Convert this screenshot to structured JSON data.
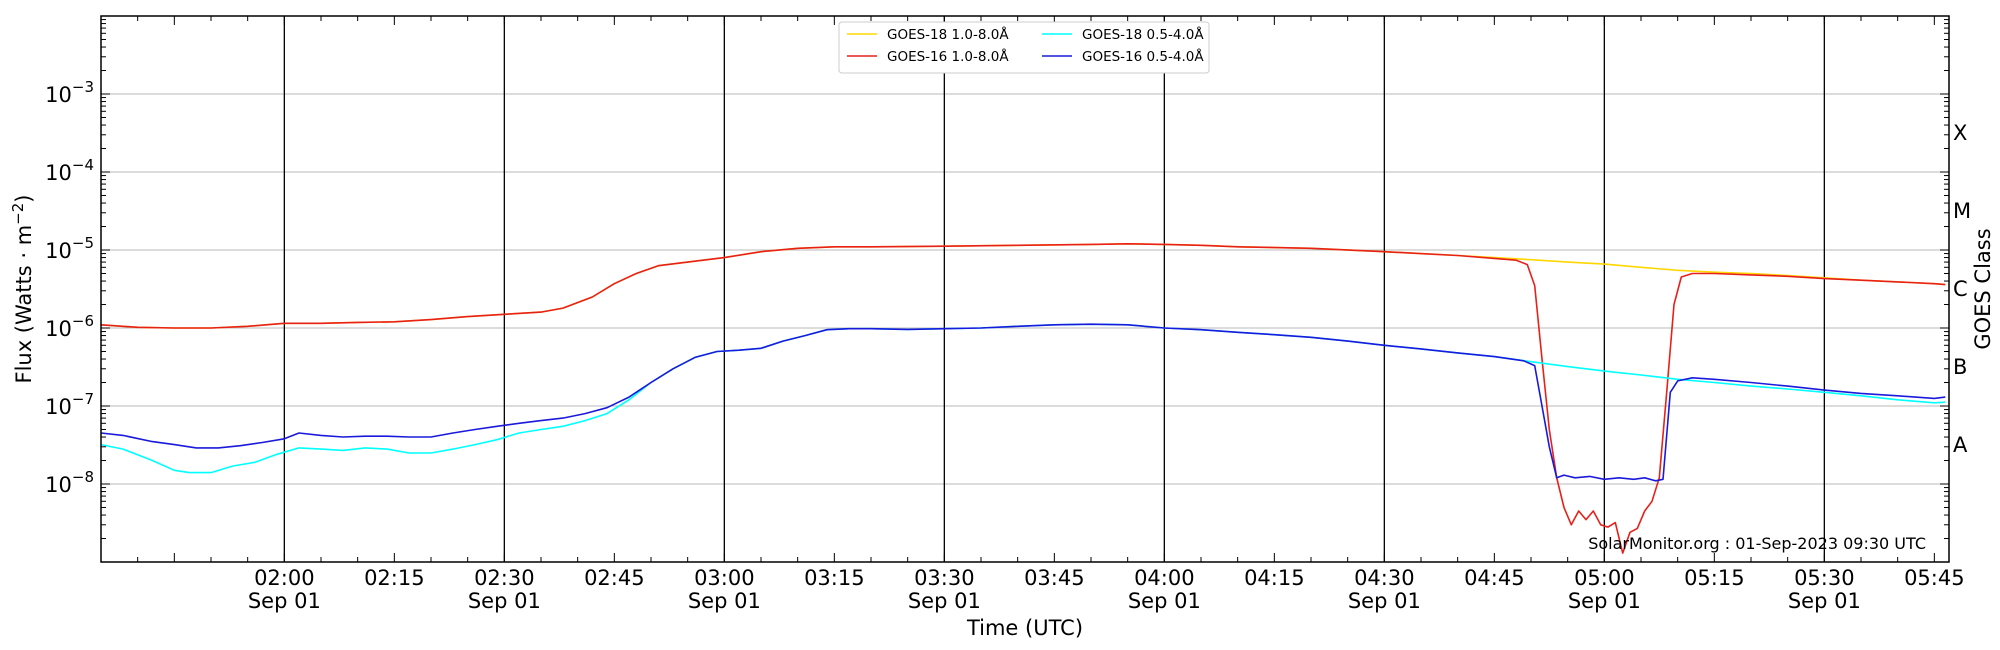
{
  "chart_data": {
    "type": "line",
    "ylabel_main": "Flux (Watts · m",
    "ylabel_exp": "−2",
    "ylabel_close": ")",
    "xlabel": "Time (UTC)",
    "right_label": "GOES Class",
    "annotation": "SolarMonitor.org : 01-Sep-2023 09:30 UTC",
    "y_scale": "log",
    "ylim": [
      1e-09,
      0.01
    ],
    "xlim_minutes": [
      95,
      347
    ],
    "grid": "horizontal at decades; vertical black lines every 30 minutes",
    "legend_position": "top-center",
    "x_ticks": [
      {
        "minute": 120,
        "time": "02:00",
        "date": "Sep 01"
      },
      {
        "minute": 135,
        "time": "02:15",
        "date": ""
      },
      {
        "minute": 150,
        "time": "02:30",
        "date": "Sep 01"
      },
      {
        "minute": 165,
        "time": "02:45",
        "date": ""
      },
      {
        "minute": 180,
        "time": "03:00",
        "date": "Sep 01"
      },
      {
        "minute": 195,
        "time": "03:15",
        "date": ""
      },
      {
        "minute": 210,
        "time": "03:30",
        "date": "Sep 01"
      },
      {
        "minute": 225,
        "time": "03:45",
        "date": ""
      },
      {
        "minute": 240,
        "time": "04:00",
        "date": "Sep 01"
      },
      {
        "minute": 255,
        "time": "04:15",
        "date": ""
      },
      {
        "minute": 270,
        "time": "04:30",
        "date": "Sep 01"
      },
      {
        "minute": 285,
        "time": "04:45",
        "date": ""
      },
      {
        "minute": 300,
        "time": "05:00",
        "date": "Sep 01"
      },
      {
        "minute": 315,
        "time": "05:15",
        "date": ""
      },
      {
        "minute": 330,
        "time": "05:30",
        "date": "Sep 01"
      },
      {
        "minute": 345,
        "time": "05:45",
        "date": ""
      }
    ],
    "y_ticks": [
      {
        "value": 1e-08,
        "base": "10",
        "exp": "−8"
      },
      {
        "value": 1e-07,
        "base": "10",
        "exp": "−7"
      },
      {
        "value": 1e-06,
        "base": "10",
        "exp": "−6"
      },
      {
        "value": 1e-05,
        "base": "10",
        "exp": "−5"
      },
      {
        "value": 0.0001,
        "base": "10",
        "exp": "−4"
      },
      {
        "value": 0.001,
        "base": "10",
        "exp": "−3"
      }
    ],
    "goes_classes": [
      {
        "label": "A",
        "value": 3.16e-08
      },
      {
        "label": "B",
        "value": 3.16e-07
      },
      {
        "label": "C",
        "value": 3.16e-06
      },
      {
        "label": "M",
        "value": 3.16e-05
      },
      {
        "label": "X",
        "value": 0.000316
      }
    ],
    "series": [
      {
        "name": "GOES-18 1.0-8.0Å",
        "color": "#ffd700",
        "points": [
          [
            95,
            1.1e-06
          ],
          [
            100,
            1.02e-06
          ],
          [
            105,
            1e-06
          ],
          [
            110,
            1e-06
          ],
          [
            115,
            1.05e-06
          ],
          [
            120,
            1.15e-06
          ],
          [
            125,
            1.15e-06
          ],
          [
            130,
            1.18e-06
          ],
          [
            135,
            1.2e-06
          ],
          [
            140,
            1.28e-06
          ],
          [
            145,
            1.4e-06
          ],
          [
            150,
            1.5e-06
          ],
          [
            155,
            1.6e-06
          ],
          [
            158,
            1.8e-06
          ],
          [
            162,
            2.5e-06
          ],
          [
            165,
            3.7e-06
          ],
          [
            168,
            5e-06
          ],
          [
            171,
            6.3e-06
          ],
          [
            175,
            7e-06
          ],
          [
            180,
            8e-06
          ],
          [
            185,
            9.5e-06
          ],
          [
            190,
            1.05e-05
          ],
          [
            195,
            1.1e-05
          ],
          [
            200,
            1.1e-05
          ],
          [
            210,
            1.12e-05
          ],
          [
            220,
            1.15e-05
          ],
          [
            230,
            1.18e-05
          ],
          [
            235,
            1.2e-05
          ],
          [
            240,
            1.18e-05
          ],
          [
            245,
            1.15e-05
          ],
          [
            250,
            1.1e-05
          ],
          [
            260,
            1.05e-05
          ],
          [
            270,
            9.5e-06
          ],
          [
            280,
            8.5e-06
          ],
          [
            285,
            8e-06
          ],
          [
            290,
            7.5e-06
          ],
          [
            295,
            7e-06
          ],
          [
            300,
            6.6e-06
          ],
          [
            305,
            6e-06
          ],
          [
            310,
            5.5e-06
          ],
          [
            315,
            5.2e-06
          ],
          [
            320,
            5e-06
          ],
          [
            325,
            4.7e-06
          ],
          [
            330,
            4.4e-06
          ],
          [
            335,
            4.1e-06
          ],
          [
            340,
            3.9e-06
          ],
          [
            345,
            3.7e-06
          ],
          [
            346.5,
            3.6e-06
          ]
        ]
      },
      {
        "name": "GOES-16 1.0-8.0Å",
        "color": "#e8201a",
        "points": [
          [
            95,
            1.1e-06
          ],
          [
            100,
            1.02e-06
          ],
          [
            105,
            1e-06
          ],
          [
            110,
            1e-06
          ],
          [
            115,
            1.05e-06
          ],
          [
            120,
            1.15e-06
          ],
          [
            125,
            1.15e-06
          ],
          [
            130,
            1.18e-06
          ],
          [
            135,
            1.2e-06
          ],
          [
            140,
            1.28e-06
          ],
          [
            145,
            1.4e-06
          ],
          [
            150,
            1.5e-06
          ],
          [
            155,
            1.6e-06
          ],
          [
            158,
            1.8e-06
          ],
          [
            162,
            2.5e-06
          ],
          [
            165,
            3.7e-06
          ],
          [
            168,
            5e-06
          ],
          [
            171,
            6.3e-06
          ],
          [
            175,
            7e-06
          ],
          [
            180,
            8e-06
          ],
          [
            185,
            9.5e-06
          ],
          [
            190,
            1.05e-05
          ],
          [
            195,
            1.1e-05
          ],
          [
            200,
            1.1e-05
          ],
          [
            210,
            1.12e-05
          ],
          [
            220,
            1.15e-05
          ],
          [
            230,
            1.18e-05
          ],
          [
            235,
            1.2e-05
          ],
          [
            240,
            1.18e-05
          ],
          [
            245,
            1.15e-05
          ],
          [
            250,
            1.1e-05
          ],
          [
            260,
            1.05e-05
          ],
          [
            270,
            9.5e-06
          ],
          [
            280,
            8.5e-06
          ],
          [
            285,
            7.8e-06
          ],
          [
            288,
            7.4e-06
          ],
          [
            289.5,
            6.5e-06
          ],
          [
            290.5,
            3.5e-06
          ],
          [
            291.5,
            4e-07
          ],
          [
            292.5,
            5e-08
          ],
          [
            293.5,
            1.2e-08
          ],
          [
            294.5,
            5e-09
          ],
          [
            295.5,
            3e-09
          ],
          [
            296.5,
            4.5e-09
          ],
          [
            297.5,
            3.5e-09
          ],
          [
            298.5,
            4.5e-09
          ],
          [
            299.5,
            3e-09
          ],
          [
            300.5,
            2.8e-09
          ],
          [
            301.5,
            3.2e-09
          ],
          [
            302.5,
            1.3e-09
          ],
          [
            303.5,
            2.4e-09
          ],
          [
            304.5,
            2.7e-09
          ],
          [
            305.5,
            4.5e-09
          ],
          [
            306.5,
            6e-09
          ],
          [
            307.5,
            1.2e-08
          ],
          [
            308.5,
            1.5e-07
          ],
          [
            309.5,
            2e-06
          ],
          [
            310.5,
            4.5e-06
          ],
          [
            312,
            5e-06
          ],
          [
            315,
            5e-06
          ],
          [
            320,
            4.8e-06
          ],
          [
            325,
            4.6e-06
          ],
          [
            330,
            4.3e-06
          ],
          [
            335,
            4.1e-06
          ],
          [
            340,
            3.9e-06
          ],
          [
            345,
            3.7e-06
          ],
          [
            346.5,
            3.6e-06
          ]
        ]
      },
      {
        "name": "GOES-18 0.5-4.0Å",
        "color": "#00ffff",
        "points": [
          [
            95,
            3.2e-08
          ],
          [
            98,
            2.8e-08
          ],
          [
            102,
            2e-08
          ],
          [
            105,
            1.5e-08
          ],
          [
            107,
            1.4e-08
          ],
          [
            110,
            1.4e-08
          ],
          [
            113,
            1.7e-08
          ],
          [
            116,
            1.9e-08
          ],
          [
            119,
            2.4e-08
          ],
          [
            122,
            2.9e-08
          ],
          [
            125,
            2.8e-08
          ],
          [
            128,
            2.7e-08
          ],
          [
            131,
            2.9e-08
          ],
          [
            134,
            2.8e-08
          ],
          [
            137,
            2.5e-08
          ],
          [
            140,
            2.5e-08
          ],
          [
            143,
            2.8e-08
          ],
          [
            146,
            3.2e-08
          ],
          [
            149,
            3.7e-08
          ],
          [
            152,
            4.5e-08
          ],
          [
            155,
            5e-08
          ],
          [
            158,
            5.5e-08
          ],
          [
            161,
            6.5e-08
          ],
          [
            164,
            8e-08
          ],
          [
            167,
            1.2e-07
          ],
          [
            170,
            2e-07
          ],
          [
            173,
            3e-07
          ],
          [
            176,
            4.2e-07
          ],
          [
            179,
            5e-07
          ],
          [
            182,
            5.2e-07
          ],
          [
            185,
            5.5e-07
          ],
          [
            188,
            6.8e-07
          ],
          [
            191,
            8e-07
          ],
          [
            194,
            9.5e-07
          ],
          [
            197,
            9.8e-07
          ],
          [
            200,
            9.8e-07
          ],
          [
            205,
            9.6e-07
          ],
          [
            210,
            9.8e-07
          ],
          [
            215,
            1e-06
          ],
          [
            220,
            1.05e-06
          ],
          [
            225,
            1.1e-06
          ],
          [
            230,
            1.12e-06
          ],
          [
            235,
            1.1e-06
          ],
          [
            240,
            1e-06
          ],
          [
            245,
            9.5e-07
          ],
          [
            250,
            8.8e-07
          ],
          [
            255,
            8.2e-07
          ],
          [
            260,
            7.6e-07
          ],
          [
            265,
            6.8e-07
          ],
          [
            270,
            6e-07
          ],
          [
            275,
            5.4e-07
          ],
          [
            280,
            4.8e-07
          ],
          [
            285,
            4.3e-07
          ],
          [
            290,
            3.7e-07
          ],
          [
            295,
            3.2e-07
          ],
          [
            300,
            2.8e-07
          ],
          [
            305,
            2.5e-07
          ],
          [
            310,
            2.2e-07
          ],
          [
            315,
            2e-07
          ],
          [
            320,
            1.8e-07
          ],
          [
            325,
            1.65e-07
          ],
          [
            330,
            1.5e-07
          ],
          [
            335,
            1.35e-07
          ],
          [
            340,
            1.2e-07
          ],
          [
            345,
            1.1e-07
          ],
          [
            346.5,
            1.12e-07
          ]
        ]
      },
      {
        "name": "GOES-16 0.5-4.0Å",
        "color": "#1a1adc",
        "points": [
          [
            95,
            4.5e-08
          ],
          [
            98,
            4.2e-08
          ],
          [
            102,
            3.5e-08
          ],
          [
            105,
            3.2e-08
          ],
          [
            108,
            2.9e-08
          ],
          [
            111,
            2.9e-08
          ],
          [
            114,
            3.1e-08
          ],
          [
            117,
            3.4e-08
          ],
          [
            120,
            3.8e-08
          ],
          [
            122,
            4.5e-08
          ],
          [
            125,
            4.2e-08
          ],
          [
            128,
            4e-08
          ],
          [
            131,
            4.1e-08
          ],
          [
            134,
            4.1e-08
          ],
          [
            137,
            4e-08
          ],
          [
            140,
            4e-08
          ],
          [
            143,
            4.5e-08
          ],
          [
            146,
            5e-08
          ],
          [
            149,
            5.5e-08
          ],
          [
            152,
            6e-08
          ],
          [
            155,
            6.5e-08
          ],
          [
            158,
            7e-08
          ],
          [
            161,
            8e-08
          ],
          [
            164,
            9.5e-08
          ],
          [
            167,
            1.3e-07
          ],
          [
            170,
            2e-07
          ],
          [
            173,
            3e-07
          ],
          [
            176,
            4.2e-07
          ],
          [
            179,
            5e-07
          ],
          [
            182,
            5.2e-07
          ],
          [
            185,
            5.5e-07
          ],
          [
            188,
            6.8e-07
          ],
          [
            191,
            8e-07
          ],
          [
            194,
            9.5e-07
          ],
          [
            197,
            9.8e-07
          ],
          [
            200,
            9.8e-07
          ],
          [
            205,
            9.6e-07
          ],
          [
            210,
            9.8e-07
          ],
          [
            215,
            1e-06
          ],
          [
            220,
            1.05e-06
          ],
          [
            225,
            1.1e-06
          ],
          [
            230,
            1.12e-06
          ],
          [
            235,
            1.1e-06
          ],
          [
            240,
            1e-06
          ],
          [
            245,
            9.5e-07
          ],
          [
            250,
            8.8e-07
          ],
          [
            255,
            8.2e-07
          ],
          [
            260,
            7.6e-07
          ],
          [
            265,
            6.8e-07
          ],
          [
            270,
            6e-07
          ],
          [
            275,
            5.4e-07
          ],
          [
            280,
            4.8e-07
          ],
          [
            285,
            4.3e-07
          ],
          [
            289,
            3.8e-07
          ],
          [
            290.5,
            3.3e-07
          ],
          [
            291.5,
            1e-07
          ],
          [
            292.5,
            3e-08
          ],
          [
            293.5,
            1.2e-08
          ],
          [
            294.5,
            1.3e-08
          ],
          [
            296,
            1.2e-08
          ],
          [
            298,
            1.25e-08
          ],
          [
            300,
            1.15e-08
          ],
          [
            302,
            1.2e-08
          ],
          [
            304,
            1.15e-08
          ],
          [
            305.5,
            1.2e-08
          ],
          [
            307,
            1.1e-08
          ],
          [
            308,
            1.15e-08
          ],
          [
            309,
            1.5e-07
          ],
          [
            310,
            2.1e-07
          ],
          [
            312,
            2.3e-07
          ],
          [
            315,
            2.2e-07
          ],
          [
            320,
            2e-07
          ],
          [
            325,
            1.8e-07
          ],
          [
            330,
            1.6e-07
          ],
          [
            335,
            1.45e-07
          ],
          [
            340,
            1.35e-07
          ],
          [
            345,
            1.25e-07
          ],
          [
            346.5,
            1.3e-07
          ]
        ]
      }
    ]
  }
}
